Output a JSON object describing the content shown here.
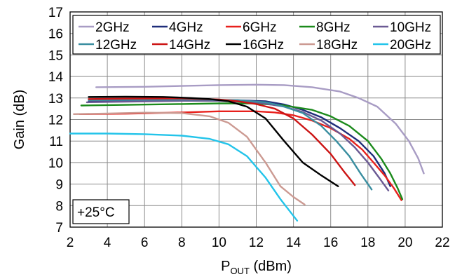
{
  "chart_data": {
    "type": "line",
    "xlabel": "P",
    "xlabel_sub": "OUT",
    "xlabel_unit": " (dBm)",
    "ylabel": "Gain (dB)",
    "xlim": [
      2,
      22
    ],
    "ylim": [
      7,
      17
    ],
    "x_ticks": [
      2,
      4,
      6,
      8,
      10,
      12,
      14,
      16,
      18,
      20,
      22
    ],
    "y_ticks": [
      7,
      8,
      9,
      10,
      11,
      12,
      13,
      14,
      15,
      16,
      17
    ],
    "grid": true,
    "legend_position": "top",
    "annotation": "+25°C",
    "series": [
      {
        "name": "2GHz",
        "color": "#a89cc4",
        "x": [
          3.4,
          6,
          8,
          10,
          12,
          13.5,
          15,
          16.5,
          17.5,
          18.5,
          19.5,
          20.2,
          20.7,
          21.0
        ],
        "y": [
          13.5,
          13.52,
          13.56,
          13.6,
          13.62,
          13.6,
          13.5,
          13.3,
          13.0,
          12.6,
          11.8,
          11.0,
          10.2,
          9.5
        ]
      },
      {
        "name": "4GHz",
        "color": "#1f2d7a",
        "x": [
          3.0,
          6,
          9,
          11,
          12.5,
          13.5,
          14.5,
          15.5,
          16.5,
          17.5,
          18.3,
          18.9,
          19.2
        ],
        "y": [
          12.85,
          12.88,
          12.9,
          12.9,
          12.85,
          12.7,
          12.45,
          12.1,
          11.6,
          11.0,
          10.3,
          9.5,
          8.9
        ]
      },
      {
        "name": "6GHz",
        "color": "#e8201c",
        "x": [
          2.5,
          5,
          8,
          10,
          12,
          13,
          14,
          15,
          16,
          17,
          17.7,
          18.3,
          18.9,
          19.4,
          19.8
        ],
        "y": [
          12.25,
          12.27,
          12.33,
          12.38,
          12.38,
          12.33,
          12.2,
          11.95,
          11.6,
          11.1,
          10.6,
          10.0,
          9.4,
          8.8,
          8.25
        ]
      },
      {
        "name": "8GHz",
        "color": "#1b8a1b",
        "x": [
          2.6,
          5,
          8,
          10,
          12,
          13.5,
          15,
          16,
          17,
          18,
          18.7,
          19.2,
          19.6,
          19.85
        ],
        "y": [
          12.65,
          12.68,
          12.72,
          12.75,
          12.75,
          12.65,
          12.45,
          12.15,
          11.7,
          11.0,
          10.2,
          9.5,
          8.8,
          8.3
        ]
      },
      {
        "name": "10GHz",
        "color": "#6b5a94",
        "x": [
          2.9,
          5,
          8,
          10,
          12,
          13.5,
          14.5,
          15.5,
          16.5,
          17.3,
          18,
          18.6,
          19.1
        ],
        "y": [
          12.8,
          12.83,
          12.87,
          12.87,
          12.8,
          12.6,
          12.35,
          11.95,
          11.35,
          10.7,
          10.0,
          9.3,
          8.7
        ]
      },
      {
        "name": "12GHz",
        "color": "#3a8ea0",
        "x": [
          3.0,
          6,
          9,
          11,
          12.5,
          13.5,
          14.5,
          15.5,
          16.3,
          17,
          17.6,
          18.2
        ],
        "y": [
          12.9,
          12.92,
          12.93,
          12.9,
          12.8,
          12.6,
          12.3,
          11.7,
          11.0,
          10.3,
          9.5,
          8.75
        ]
      },
      {
        "name": "14GHz",
        "color": "#cc1414",
        "x": [
          3.0,
          5,
          8,
          10,
          11,
          12,
          13,
          14,
          15,
          16,
          16.7,
          17.3
        ],
        "y": [
          12.95,
          12.97,
          12.98,
          12.93,
          12.85,
          12.72,
          12.5,
          12.05,
          11.3,
          10.4,
          9.6,
          8.95
        ]
      },
      {
        "name": "16GHz",
        "color": "#000000",
        "x": [
          3.0,
          5,
          7,
          8.5,
          9.5,
          10.5,
          11.5,
          12.5,
          13.5,
          14.5,
          15.5,
          16.4
        ],
        "y": [
          13.05,
          13.06,
          13.05,
          13.0,
          12.95,
          12.85,
          12.6,
          12.05,
          11.0,
          10.0,
          9.4,
          8.9
        ]
      },
      {
        "name": "18GHz",
        "color": "#cc9a92",
        "x": [
          2.2,
          4,
          6,
          8,
          9.5,
          10.5,
          11.5,
          12.5,
          13.3,
          14,
          14.6
        ],
        "y": [
          12.25,
          12.28,
          12.32,
          12.3,
          12.15,
          11.85,
          11.2,
          10.0,
          8.9,
          8.4,
          8.05
        ]
      },
      {
        "name": "20GHz",
        "color": "#23c4ea",
        "x": [
          2.0,
          4,
          6,
          8,
          9.5,
          10.5,
          11.5,
          12.5,
          13.3,
          14.2
        ],
        "y": [
          11.35,
          11.35,
          11.32,
          11.25,
          11.1,
          10.85,
          10.3,
          9.3,
          8.3,
          7.3
        ]
      }
    ]
  }
}
